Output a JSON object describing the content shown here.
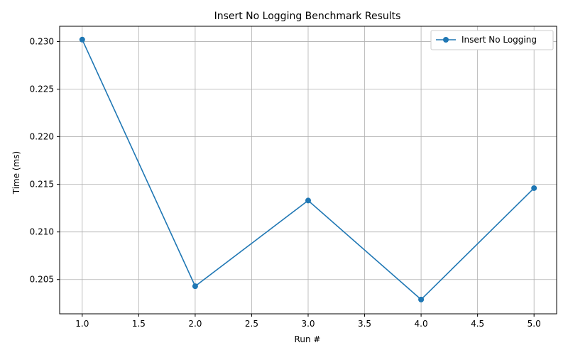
{
  "chart_data": {
    "type": "line",
    "title": "Insert No Logging Benchmark Results",
    "xlabel": "Run #",
    "ylabel": "Time (ms)",
    "x": [
      1,
      2,
      3,
      4,
      5
    ],
    "series": [
      {
        "name": "Insert No Logging",
        "values": [
          0.2302,
          0.2043,
          0.2133,
          0.2029,
          0.2146
        ],
        "color": "#1f77b4",
        "marker": "circle"
      }
    ],
    "xlim": [
      0.8,
      5.2
    ],
    "ylim": [
      0.2014,
      0.2316
    ],
    "xticks": [
      1.0,
      1.5,
      2.0,
      2.5,
      3.0,
      3.5,
      4.0,
      4.5,
      5.0
    ],
    "xtick_labels": [
      "1.0",
      "1.5",
      "2.0",
      "2.5",
      "3.0",
      "3.5",
      "4.0",
      "4.5",
      "5.0"
    ],
    "yticks": [
      0.205,
      0.21,
      0.215,
      0.22,
      0.225,
      0.23
    ],
    "ytick_labels": [
      "0.205",
      "0.210",
      "0.215",
      "0.220",
      "0.225",
      "0.230"
    ],
    "grid": true,
    "legend_position": "top-right"
  }
}
